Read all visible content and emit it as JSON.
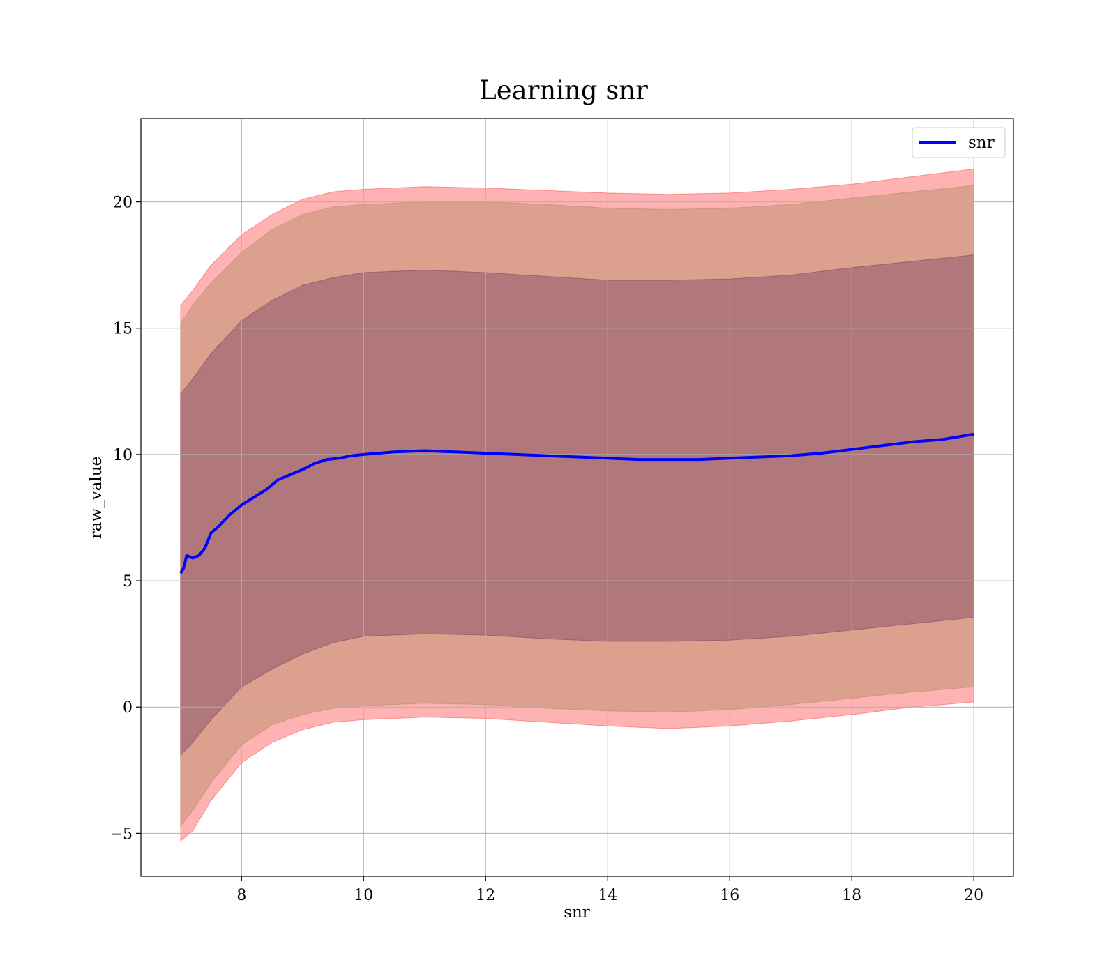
{
  "chart_data": {
    "type": "line",
    "title": "Learning snr",
    "xlabel": "snr",
    "ylabel": "raw_value",
    "xlim": [
      6.35,
      20.65
    ],
    "ylim": [
      -6.7,
      23.3
    ],
    "xticks": [
      8,
      10,
      12,
      14,
      16,
      18,
      20
    ],
    "yticks": [
      -5,
      0,
      5,
      10,
      15,
      20
    ],
    "xtick_labels": [
      "8",
      "10",
      "12",
      "14",
      "16",
      "18",
      "20"
    ],
    "ytick_labels": [
      "−5",
      "0",
      "5",
      "10",
      "15",
      "20"
    ],
    "grid": true,
    "legend": {
      "position": "upper-right",
      "entries": [
        "snr"
      ]
    },
    "series": [
      {
        "name": "snr",
        "color": "#0000ff",
        "x": [
          7.0,
          7.05,
          7.1,
          7.2,
          7.3,
          7.4,
          7.5,
          7.6,
          7.8,
          8.0,
          8.2,
          8.4,
          8.6,
          8.8,
          9.0,
          9.2,
          9.4,
          9.6,
          9.8,
          10.0,
          10.5,
          11.0,
          11.5,
          12.0,
          12.5,
          13.0,
          13.5,
          14.0,
          14.5,
          15.0,
          15.5,
          16.0,
          16.5,
          17.0,
          17.5,
          18.0,
          18.5,
          19.0,
          19.5,
          20.0
        ],
        "y": [
          5.3,
          5.5,
          6.0,
          5.9,
          6.0,
          6.3,
          6.9,
          7.1,
          7.6,
          8.0,
          8.3,
          8.6,
          9.0,
          9.2,
          9.4,
          9.65,
          9.8,
          9.85,
          9.95,
          10.0,
          10.1,
          10.15,
          10.1,
          10.05,
          10.0,
          9.95,
          9.9,
          9.85,
          9.8,
          9.8,
          9.8,
          9.85,
          9.9,
          9.95,
          10.05,
          10.2,
          10.35,
          10.5,
          10.6,
          10.8
        ]
      }
    ],
    "bands": [
      {
        "name": "outer",
        "color": "#ff0000",
        "alpha": 0.3,
        "x": [
          7.0,
          7.2,
          7.5,
          8.0,
          8.5,
          9.0,
          9.5,
          10.0,
          11.0,
          12.0,
          13.0,
          14.0,
          15.0,
          16.0,
          17.0,
          18.0,
          19.0,
          20.0
        ],
        "upper": [
          15.9,
          16.5,
          17.5,
          18.7,
          19.5,
          20.1,
          20.4,
          20.5,
          20.6,
          20.55,
          20.45,
          20.35,
          20.3,
          20.35,
          20.5,
          20.7,
          21.0,
          21.3
        ],
        "lower": [
          -5.3,
          -4.9,
          -3.7,
          -2.2,
          -1.4,
          -0.9,
          -0.6,
          -0.5,
          -0.4,
          -0.45,
          -0.6,
          -0.75,
          -0.85,
          -0.75,
          -0.55,
          -0.3,
          0.0,
          0.2
        ]
      },
      {
        "name": "middle",
        "color": "#8b7a3a",
        "alpha": 0.3,
        "x": [
          7.0,
          7.2,
          7.5,
          8.0,
          8.5,
          9.0,
          9.5,
          10.0,
          11.0,
          12.0,
          13.0,
          14.0,
          15.0,
          16.0,
          17.0,
          18.0,
          19.0,
          20.0
        ],
        "upper": [
          15.2,
          15.9,
          16.8,
          18.0,
          18.9,
          19.5,
          19.8,
          19.9,
          20.0,
          20.0,
          19.9,
          19.75,
          19.7,
          19.75,
          19.9,
          20.15,
          20.4,
          20.65
        ],
        "lower": [
          -4.7,
          -4.1,
          -3.0,
          -1.5,
          -0.7,
          -0.3,
          -0.05,
          0.05,
          0.15,
          0.1,
          -0.05,
          -0.15,
          -0.2,
          -0.1,
          0.1,
          0.35,
          0.6,
          0.8
        ]
      },
      {
        "name": "inner",
        "color": "#4b1a4b",
        "alpha": 0.3,
        "x": [
          7.0,
          7.2,
          7.5,
          8.0,
          8.5,
          9.0,
          9.5,
          10.0,
          11.0,
          12.0,
          13.0,
          14.0,
          15.0,
          16.0,
          17.0,
          18.0,
          19.0,
          20.0
        ],
        "upper": [
          12.4,
          13.0,
          14.0,
          15.3,
          16.1,
          16.7,
          17.0,
          17.2,
          17.3,
          17.2,
          17.05,
          16.9,
          16.9,
          16.95,
          17.1,
          17.4,
          17.65,
          17.9
        ],
        "lower": [
          -1.9,
          -1.4,
          -0.5,
          0.8,
          1.5,
          2.1,
          2.55,
          2.8,
          2.9,
          2.85,
          2.7,
          2.6,
          2.6,
          2.65,
          2.8,
          3.05,
          3.3,
          3.55
        ]
      }
    ]
  }
}
